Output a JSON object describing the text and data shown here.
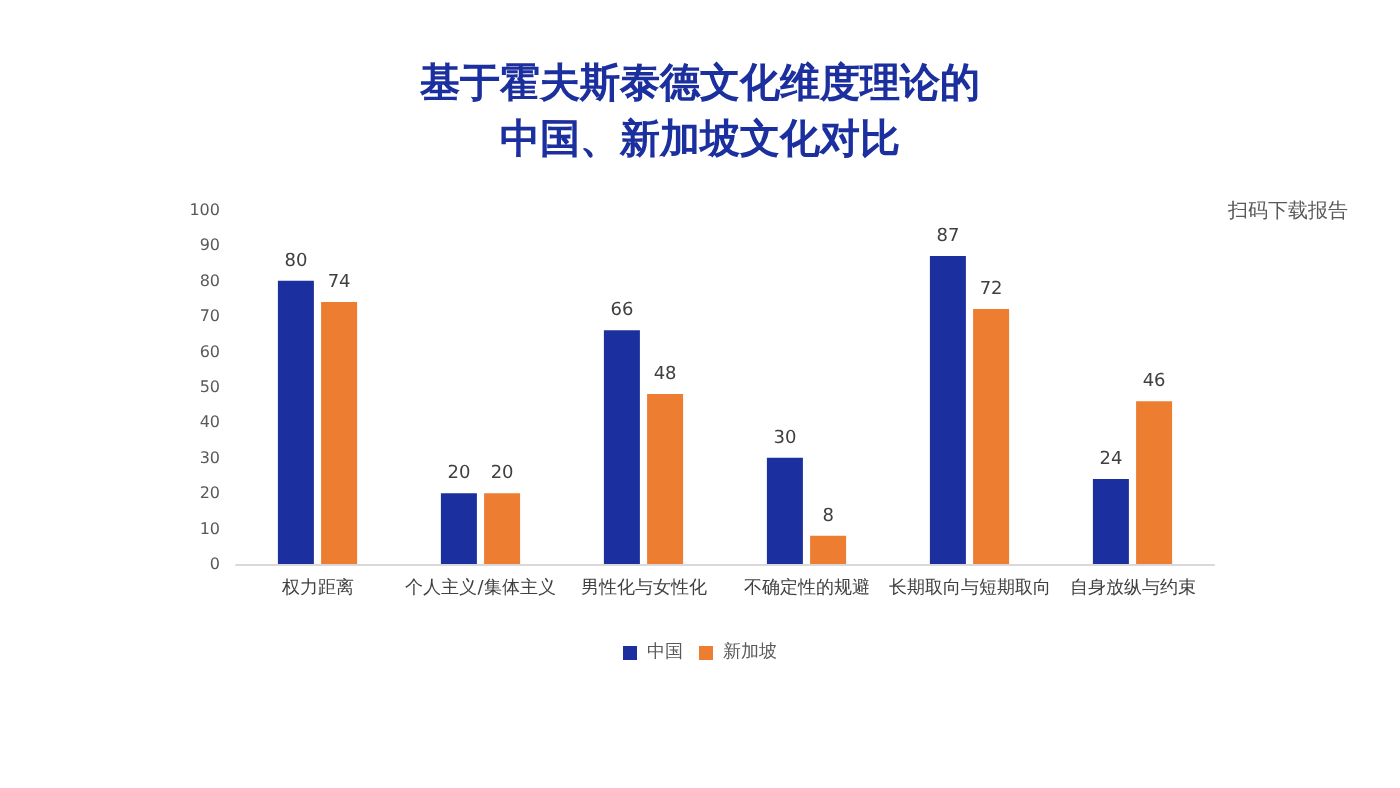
{
  "chart_data": {
    "type": "bar",
    "title": "基于霍夫斯泰德文化维度理论的中国、新加坡文化对比",
    "categories": [
      "权力距离",
      "个人主义/集体主义",
      "男性化与女性化",
      "不确定性的规避",
      "长期取向与短期取向",
      "自身放纵与约束"
    ],
    "series": [
      {
        "name": "中国",
        "color": "#1b2f9e",
        "values": [
          80,
          20,
          66,
          30,
          87,
          24
        ]
      },
      {
        "name": "新加坡",
        "color": "#ed7d31",
        "values": [
          74,
          20,
          48,
          8,
          72,
          46
        ]
      }
    ],
    "ylim": [
      0,
      100
    ],
    "yticks": [
      0,
      10,
      20,
      30,
      40,
      50,
      60,
      70,
      80,
      90,
      100
    ],
    "grid": false,
    "legend": "bottom",
    "data_labels": true,
    "annotations": [
      "扫码下载报告"
    ]
  }
}
